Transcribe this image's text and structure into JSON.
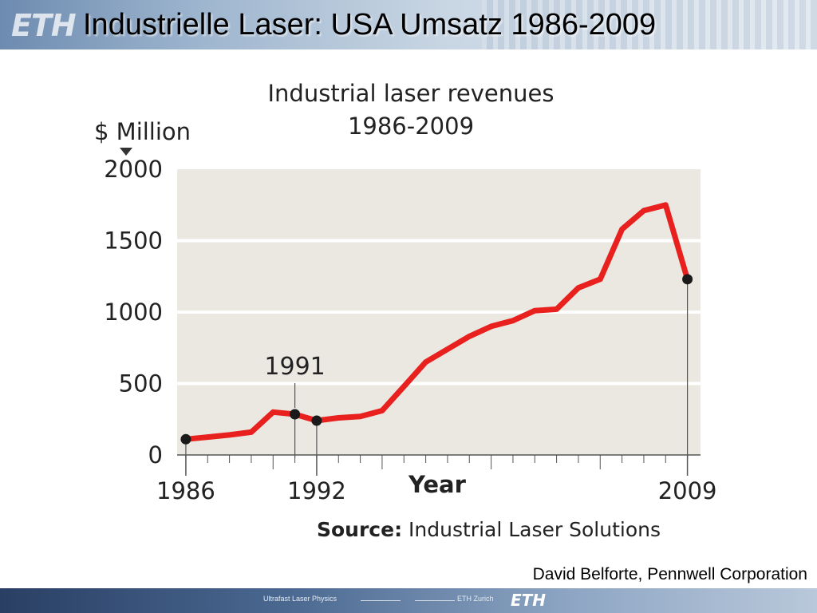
{
  "slide": {
    "title": "Industrielle Laser:  USA Umsatz 1986-2009",
    "credit": "David Belforte, Pennwell Corporation",
    "logo_text": "ETH",
    "footer_left": "Ultrafast Laser Physics",
    "footer_mid": "ETH Zurich",
    "footer_logo": "ETH"
  },
  "chart_data": {
    "type": "line",
    "title_line1": "Industrial laser revenues",
    "title_line2": "1986-2009",
    "ylabel": "$ Million",
    "xlabel": "Year",
    "source_label": "Source:",
    "source_text": " Industrial Laser Solutions",
    "xlim": [
      1985.6,
      2009.6
    ],
    "ylim": [
      0,
      2000
    ],
    "y_ticks": [
      {
        "value": 0,
        "label": "0"
      },
      {
        "value": 500,
        "label": "500"
      },
      {
        "value": 1000,
        "label": "1000"
      },
      {
        "value": 1500,
        "label": "1500"
      },
      {
        "value": 2000,
        "label": "2000"
      }
    ],
    "x_tick_labels": [
      {
        "value": 1986,
        "label": "1986"
      },
      {
        "value": 1992,
        "label": "1992"
      },
      {
        "value": 2009,
        "label": "2009"
      }
    ],
    "grid": true,
    "line_color": "#e8201e",
    "series": [
      {
        "x": [
          1986,
          1987,
          1988,
          1989,
          1990,
          1991,
          1992,
          1993,
          1994,
          1995,
          1996,
          1997,
          1998,
          1999,
          2000,
          2001,
          2002,
          2003,
          2004,
          2005,
          2006,
          2007,
          2008,
          2009
        ],
        "values": [
          110,
          125,
          140,
          160,
          300,
          285,
          240,
          260,
          270,
          310,
          480,
          650,
          740,
          830,
          900,
          940,
          1010,
          1020,
          1170,
          1230,
          1580,
          1710,
          1750,
          1230
        ]
      }
    ],
    "annotations": [
      {
        "x": 1991,
        "value": 285,
        "label": "1991"
      }
    ],
    "highlight_points": [
      {
        "x": 1986,
        "value": 110
      },
      {
        "x": 1991,
        "value": 285
      },
      {
        "x": 1992,
        "value": 240
      },
      {
        "x": 2009,
        "value": 1230
      }
    ]
  }
}
